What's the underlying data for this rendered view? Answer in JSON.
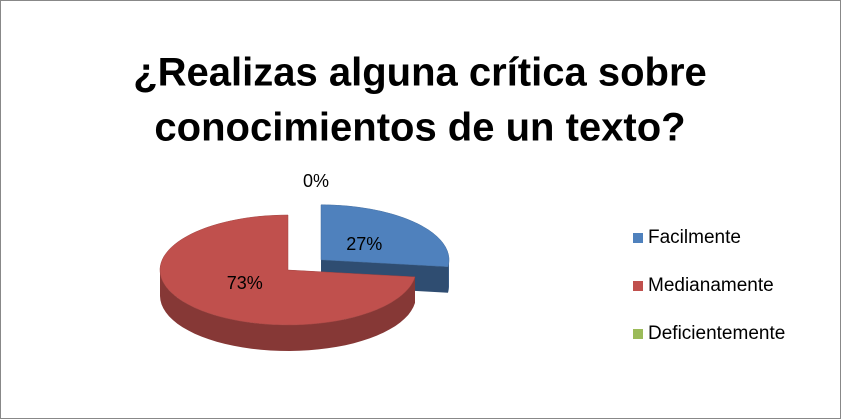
{
  "chart_data": {
    "type": "pie",
    "title": [
      "¿Realizas  alguna crítica  sobre",
      "conocimientos de un  texto?"
    ],
    "categories": [
      "Facilmente",
      "Medianamente",
      "Deficientemente"
    ],
    "values": [
      27,
      73,
      0
    ],
    "value_labels": [
      "27%",
      "73%",
      "0%"
    ],
    "colors": [
      "#4f81bd",
      "#c0504d",
      "#9bbb59"
    ],
    "legend": "right"
  }
}
